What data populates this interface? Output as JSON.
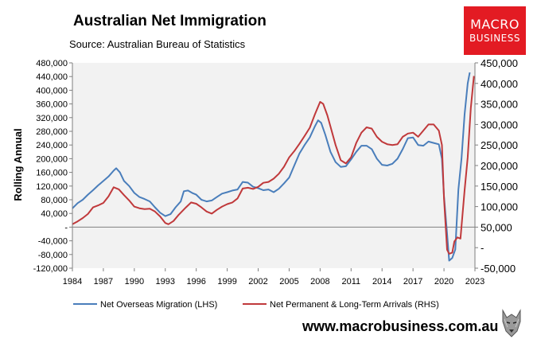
{
  "header": {
    "title": "Australian Net Immigration",
    "subtitle": "Source: Australian Bureau of Statistics"
  },
  "logo": {
    "line1": "MACRO",
    "line2": "BUSINESS",
    "bg_color": "#e31b23"
  },
  "footer": {
    "website": "www.macrobusiness.com.au",
    "icon": "wolf-logo-icon"
  },
  "chart_data": {
    "type": "line",
    "title": "Australian Net Immigration",
    "subtitle": "Source: Australian Bureau of Statistics",
    "ylabel": "Rolling Annual",
    "y_left": {
      "ylim": [
        -120000,
        480000
      ],
      "ticks": [
        -120000,
        -80000,
        -40000,
        0,
        40000,
        80000,
        120000,
        160000,
        200000,
        240000,
        280000,
        320000,
        360000,
        400000,
        440000,
        480000
      ],
      "tick_labels": [
        "-120,000",
        "-80,000",
        "-40,000",
        "-",
        "40,000",
        "80,000",
        "120,000",
        "160,000",
        "200,000",
        "240,000",
        "280,000",
        "320,000",
        "360,000",
        "400,000",
        "440,000",
        "480,000"
      ]
    },
    "y_right": {
      "ylim": [
        -50000,
        450000
      ],
      "ticks": [
        -50000,
        0,
        50000,
        100000,
        150000,
        200000,
        250000,
        300000,
        350000,
        400000,
        450000
      ],
      "tick_labels": [
        "-50,000",
        "-",
        "50,000",
        "100,000",
        "150,000",
        "200,000",
        "250,000",
        "300,000",
        "350,000",
        "400,000",
        "450,000"
      ]
    },
    "x": {
      "xlim": [
        1984,
        2023
      ],
      "ticks": [
        1984,
        1987,
        1990,
        1993,
        1996,
        1999,
        2002,
        2005,
        2008,
        2011,
        2014,
        2017,
        2020,
        2023
      ],
      "tick_labels": [
        "1984",
        "1987",
        "1990",
        "1993",
        "1996",
        "1999",
        "2002",
        "2005",
        "2008",
        "2011",
        "2014",
        "2017",
        "2020",
        "2023"
      ]
    },
    "grid": false,
    "plot_background": "#f2f2f2",
    "legend_position": "bottom",
    "series": [
      {
        "name": "Net Overseas Migration (LHS)",
        "axis": "left",
        "color": "#4a7ebb",
        "points": [
          [
            1984.0,
            55000
          ],
          [
            1984.5,
            70000
          ],
          [
            1985.0,
            80000
          ],
          [
            1985.5,
            95000
          ],
          [
            1986.0,
            108000
          ],
          [
            1986.5,
            122000
          ],
          [
            1987.0,
            135000
          ],
          [
            1987.5,
            148000
          ],
          [
            1988.0,
            165000
          ],
          [
            1988.25,
            172000
          ],
          [
            1988.6,
            160000
          ],
          [
            1989.0,
            135000
          ],
          [
            1989.5,
            120000
          ],
          [
            1990.0,
            100000
          ],
          [
            1990.5,
            88000
          ],
          [
            1991.0,
            82000
          ],
          [
            1991.5,
            75000
          ],
          [
            1992.0,
            58000
          ],
          [
            1992.5,
            42000
          ],
          [
            1993.0,
            32000
          ],
          [
            1993.5,
            38000
          ],
          [
            1994.0,
            58000
          ],
          [
            1994.5,
            75000
          ],
          [
            1994.8,
            105000
          ],
          [
            1995.2,
            107000
          ],
          [
            1995.6,
            100000
          ],
          [
            1996.0,
            95000
          ],
          [
            1996.5,
            80000
          ],
          [
            1997.0,
            75000
          ],
          [
            1997.5,
            78000
          ],
          [
            1998.0,
            88000
          ],
          [
            1998.5,
            98000
          ],
          [
            1999.0,
            102000
          ],
          [
            1999.5,
            107000
          ],
          [
            2000.0,
            110000
          ],
          [
            2000.5,
            132000
          ],
          [
            2001.0,
            130000
          ],
          [
            2001.5,
            118000
          ],
          [
            2002.0,
            114000
          ],
          [
            2002.5,
            108000
          ],
          [
            2003.0,
            110000
          ],
          [
            2003.5,
            102000
          ],
          [
            2004.0,
            112000
          ],
          [
            2004.5,
            128000
          ],
          [
            2005.0,
            145000
          ],
          [
            2005.5,
            180000
          ],
          [
            2006.0,
            215000
          ],
          [
            2006.5,
            240000
          ],
          [
            2007.0,
            262000
          ],
          [
            2007.5,
            295000
          ],
          [
            2007.8,
            312000
          ],
          [
            2008.1,
            305000
          ],
          [
            2008.5,
            270000
          ],
          [
            2009.0,
            220000
          ],
          [
            2009.5,
            190000
          ],
          [
            2010.0,
            176000
          ],
          [
            2010.5,
            178000
          ],
          [
            2011.0,
            198000
          ],
          [
            2011.5,
            220000
          ],
          [
            2012.0,
            238000
          ],
          [
            2012.5,
            238000
          ],
          [
            2013.0,
            228000
          ],
          [
            2013.5,
            200000
          ],
          [
            2014.0,
            182000
          ],
          [
            2014.5,
            180000
          ],
          [
            2015.0,
            185000
          ],
          [
            2015.5,
            200000
          ],
          [
            2016.0,
            228000
          ],
          [
            2016.5,
            260000
          ],
          [
            2017.0,
            262000
          ],
          [
            2017.5,
            240000
          ],
          [
            2018.0,
            238000
          ],
          [
            2018.5,
            250000
          ],
          [
            2019.0,
            246000
          ],
          [
            2019.5,
            242000
          ],
          [
            2019.8,
            200000
          ],
          [
            2020.0,
            90000
          ],
          [
            2020.3,
            -20000
          ],
          [
            2020.5,
            -98000
          ],
          [
            2020.8,
            -90000
          ],
          [
            2021.1,
            -65000
          ],
          [
            2021.4,
            110000
          ],
          [
            2021.7,
            200000
          ],
          [
            2022.0,
            330000
          ],
          [
            2022.3,
            420000
          ],
          [
            2022.5,
            452000
          ]
        ]
      },
      {
        "name": "Net Permanent & Long-Term Arrivals (RHS)",
        "axis": "right",
        "color": "#c0393b",
        "points": [
          [
            1984.0,
            57000
          ],
          [
            1984.5,
            64000
          ],
          [
            1985.0,
            72000
          ],
          [
            1985.5,
            82000
          ],
          [
            1986.0,
            98000
          ],
          [
            1986.5,
            103000
          ],
          [
            1987.0,
            109000
          ],
          [
            1987.5,
            125000
          ],
          [
            1988.0,
            147000
          ],
          [
            1988.5,
            142000
          ],
          [
            1989.0,
            128000
          ],
          [
            1989.5,
            115000
          ],
          [
            1990.0,
            100000
          ],
          [
            1990.5,
            96000
          ],
          [
            1991.0,
            94000
          ],
          [
            1991.5,
            95000
          ],
          [
            1992.0,
            88000
          ],
          [
            1992.5,
            76000
          ],
          [
            1993.0,
            60000
          ],
          [
            1993.3,
            57000
          ],
          [
            1993.8,
            65000
          ],
          [
            1994.3,
            80000
          ],
          [
            1995.0,
            98000
          ],
          [
            1995.5,
            110000
          ],
          [
            1996.0,
            107000
          ],
          [
            1996.5,
            98000
          ],
          [
            1997.0,
            88000
          ],
          [
            1997.5,
            83000
          ],
          [
            1998.0,
            92000
          ],
          [
            1998.5,
            100000
          ],
          [
            1999.0,
            106000
          ],
          [
            1999.5,
            110000
          ],
          [
            2000.0,
            120000
          ],
          [
            2000.5,
            144000
          ],
          [
            2001.0,
            146000
          ],
          [
            2001.5,
            143000
          ],
          [
            2002.0,
            148000
          ],
          [
            2002.5,
            158000
          ],
          [
            2003.0,
            160000
          ],
          [
            2003.5,
            168000
          ],
          [
            2004.0,
            180000
          ],
          [
            2004.5,
            197000
          ],
          [
            2005.0,
            220000
          ],
          [
            2005.5,
            235000
          ],
          [
            2006.0,
            253000
          ],
          [
            2006.5,
            272000
          ],
          [
            2007.0,
            292000
          ],
          [
            2007.5,
            325000
          ],
          [
            2008.0,
            355000
          ],
          [
            2008.3,
            350000
          ],
          [
            2008.7,
            322000
          ],
          [
            2009.0,
            295000
          ],
          [
            2009.5,
            250000
          ],
          [
            2010.0,
            213000
          ],
          [
            2010.5,
            205000
          ],
          [
            2011.0,
            220000
          ],
          [
            2011.5,
            255000
          ],
          [
            2012.0,
            280000
          ],
          [
            2012.5,
            293000
          ],
          [
            2013.0,
            290000
          ],
          [
            2013.5,
            270000
          ],
          [
            2014.0,
            258000
          ],
          [
            2014.5,
            252000
          ],
          [
            2015.0,
            250000
          ],
          [
            2015.5,
            252000
          ],
          [
            2016.0,
            270000
          ],
          [
            2016.5,
            278000
          ],
          [
            2017.0,
            280000
          ],
          [
            2017.5,
            270000
          ],
          [
            2018.0,
            285000
          ],
          [
            2018.5,
            300000
          ],
          [
            2019.0,
            300000
          ],
          [
            2019.5,
            285000
          ],
          [
            2019.8,
            250000
          ],
          [
            2020.0,
            120000
          ],
          [
            2020.3,
            -5000
          ],
          [
            2020.5,
            -15000
          ],
          [
            2020.8,
            -12000
          ],
          [
            2021.0,
            15000
          ],
          [
            2021.3,
            25000
          ],
          [
            2021.6,
            22000
          ],
          [
            2022.0,
            140000
          ],
          [
            2022.3,
            220000
          ],
          [
            2022.6,
            340000
          ],
          [
            2022.9,
            418000
          ]
        ]
      }
    ]
  }
}
